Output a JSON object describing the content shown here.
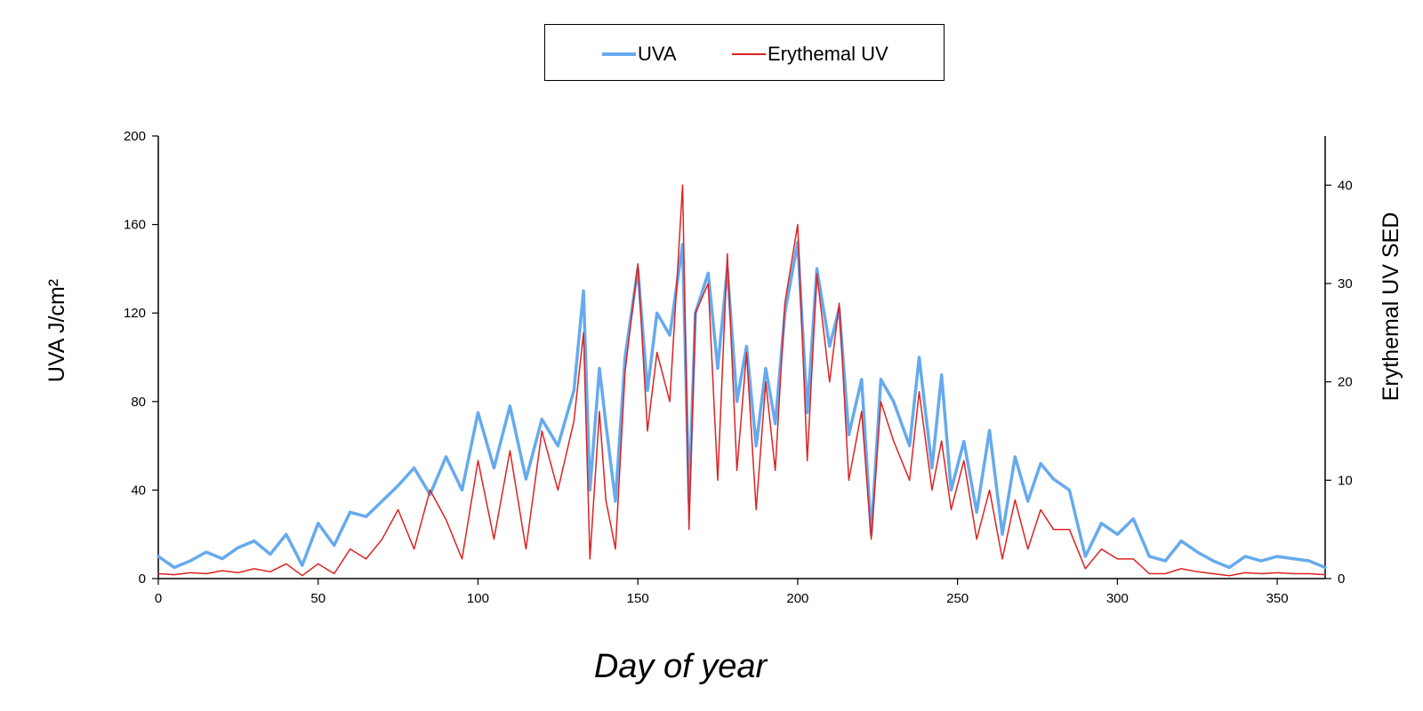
{
  "chart_data": {
    "type": "line",
    "title": "",
    "xlabel": "Day of year",
    "ylabel_left": "UVA J/cm²",
    "ylabel_right": "Erythemal UV SED",
    "xlim": [
      0,
      365
    ],
    "ylim_left": [
      0,
      200
    ],
    "ylim_right": [
      0,
      45
    ],
    "x_ticks": [
      0,
      50,
      100,
      150,
      200,
      250,
      300,
      350
    ],
    "y_ticks_left": [
      0,
      40,
      80,
      120,
      160,
      200
    ],
    "y_ticks_right": [
      0,
      10,
      20,
      30,
      40
    ],
    "grid": false,
    "legend_position": "top-center",
    "series": [
      {
        "name": "UVA",
        "axis": "left",
        "color": "#66aaee",
        "x": [
          0,
          5,
          10,
          15,
          20,
          25,
          30,
          35,
          40,
          45,
          50,
          55,
          60,
          65,
          70,
          75,
          80,
          85,
          90,
          95,
          100,
          105,
          110,
          115,
          120,
          125,
          130,
          133,
          135,
          138,
          140,
          143,
          146,
          150,
          153,
          156,
          160,
          164,
          166,
          168,
          172,
          175,
          178,
          181,
          184,
          187,
          190,
          193,
          196,
          200,
          203,
          206,
          210,
          213,
          216,
          220,
          223,
          226,
          230,
          235,
          238,
          242,
          245,
          248,
          252,
          256,
          260,
          264,
          268,
          272,
          276,
          280,
          285,
          290,
          295,
          300,
          305,
          310,
          315,
          320,
          325,
          330,
          335,
          340,
          345,
          350,
          355,
          360,
          365
        ],
        "values": [
          10,
          5,
          8,
          12,
          9,
          14,
          17,
          11,
          20,
          6,
          25,
          15,
          30,
          28,
          35,
          42,
          50,
          38,
          55,
          40,
          75,
          50,
          78,
          45,
          72,
          60,
          85,
          130,
          40,
          95,
          70,
          35,
          100,
          140,
          85,
          120,
          110,
          151,
          35,
          120,
          138,
          95,
          140,
          80,
          105,
          60,
          95,
          70,
          120,
          152,
          75,
          140,
          105,
          122,
          65,
          90,
          20,
          90,
          80,
          60,
          100,
          50,
          92,
          40,
          62,
          30,
          67,
          20,
          55,
          35,
          52,
          45,
          40,
          10,
          25,
          20,
          27,
          10,
          8,
          17,
          12,
          8,
          5,
          10,
          8,
          10,
          9,
          8,
          5
        ]
      },
      {
        "name": "Erythemal UV",
        "axis": "right",
        "color": "#dd2222",
        "x": [
          0,
          5,
          10,
          15,
          20,
          25,
          30,
          35,
          40,
          45,
          50,
          55,
          60,
          65,
          70,
          75,
          80,
          85,
          90,
          95,
          100,
          105,
          110,
          115,
          120,
          125,
          130,
          133,
          135,
          138,
          140,
          143,
          146,
          150,
          153,
          156,
          160,
          164,
          166,
          168,
          172,
          175,
          178,
          181,
          184,
          187,
          190,
          193,
          196,
          200,
          203,
          206,
          210,
          213,
          216,
          220,
          223,
          226,
          230,
          235,
          238,
          242,
          245,
          248,
          252,
          256,
          260,
          264,
          268,
          272,
          276,
          280,
          285,
          290,
          295,
          300,
          305,
          310,
          315,
          320,
          325,
          330,
          335,
          340,
          345,
          350,
          355,
          360,
          365
        ],
        "values": [
          0.5,
          0.4,
          0.6,
          0.5,
          0.8,
          0.6,
          1.0,
          0.7,
          1.5,
          0.3,
          1.5,
          0.5,
          3,
          2,
          4,
          7,
          3,
          9,
          6,
          2,
          12,
          4,
          13,
          3,
          15,
          9,
          16,
          25,
          2,
          17,
          8,
          3,
          21,
          32,
          15,
          23,
          18,
          40,
          5,
          27,
          30,
          10,
          33,
          11,
          23,
          7,
          20,
          11,
          28,
          36,
          12,
          31,
          20,
          28,
          10,
          17,
          4,
          18,
          14,
          10,
          19,
          9,
          14,
          7,
          12,
          4,
          9,
          2,
          8,
          3,
          7,
          5,
          5,
          1,
          3,
          2,
          2,
          0.5,
          0.5,
          1,
          0.7,
          0.5,
          0.3,
          0.6,
          0.5,
          0.6,
          0.5,
          0.5,
          0.4
        ]
      }
    ]
  }
}
